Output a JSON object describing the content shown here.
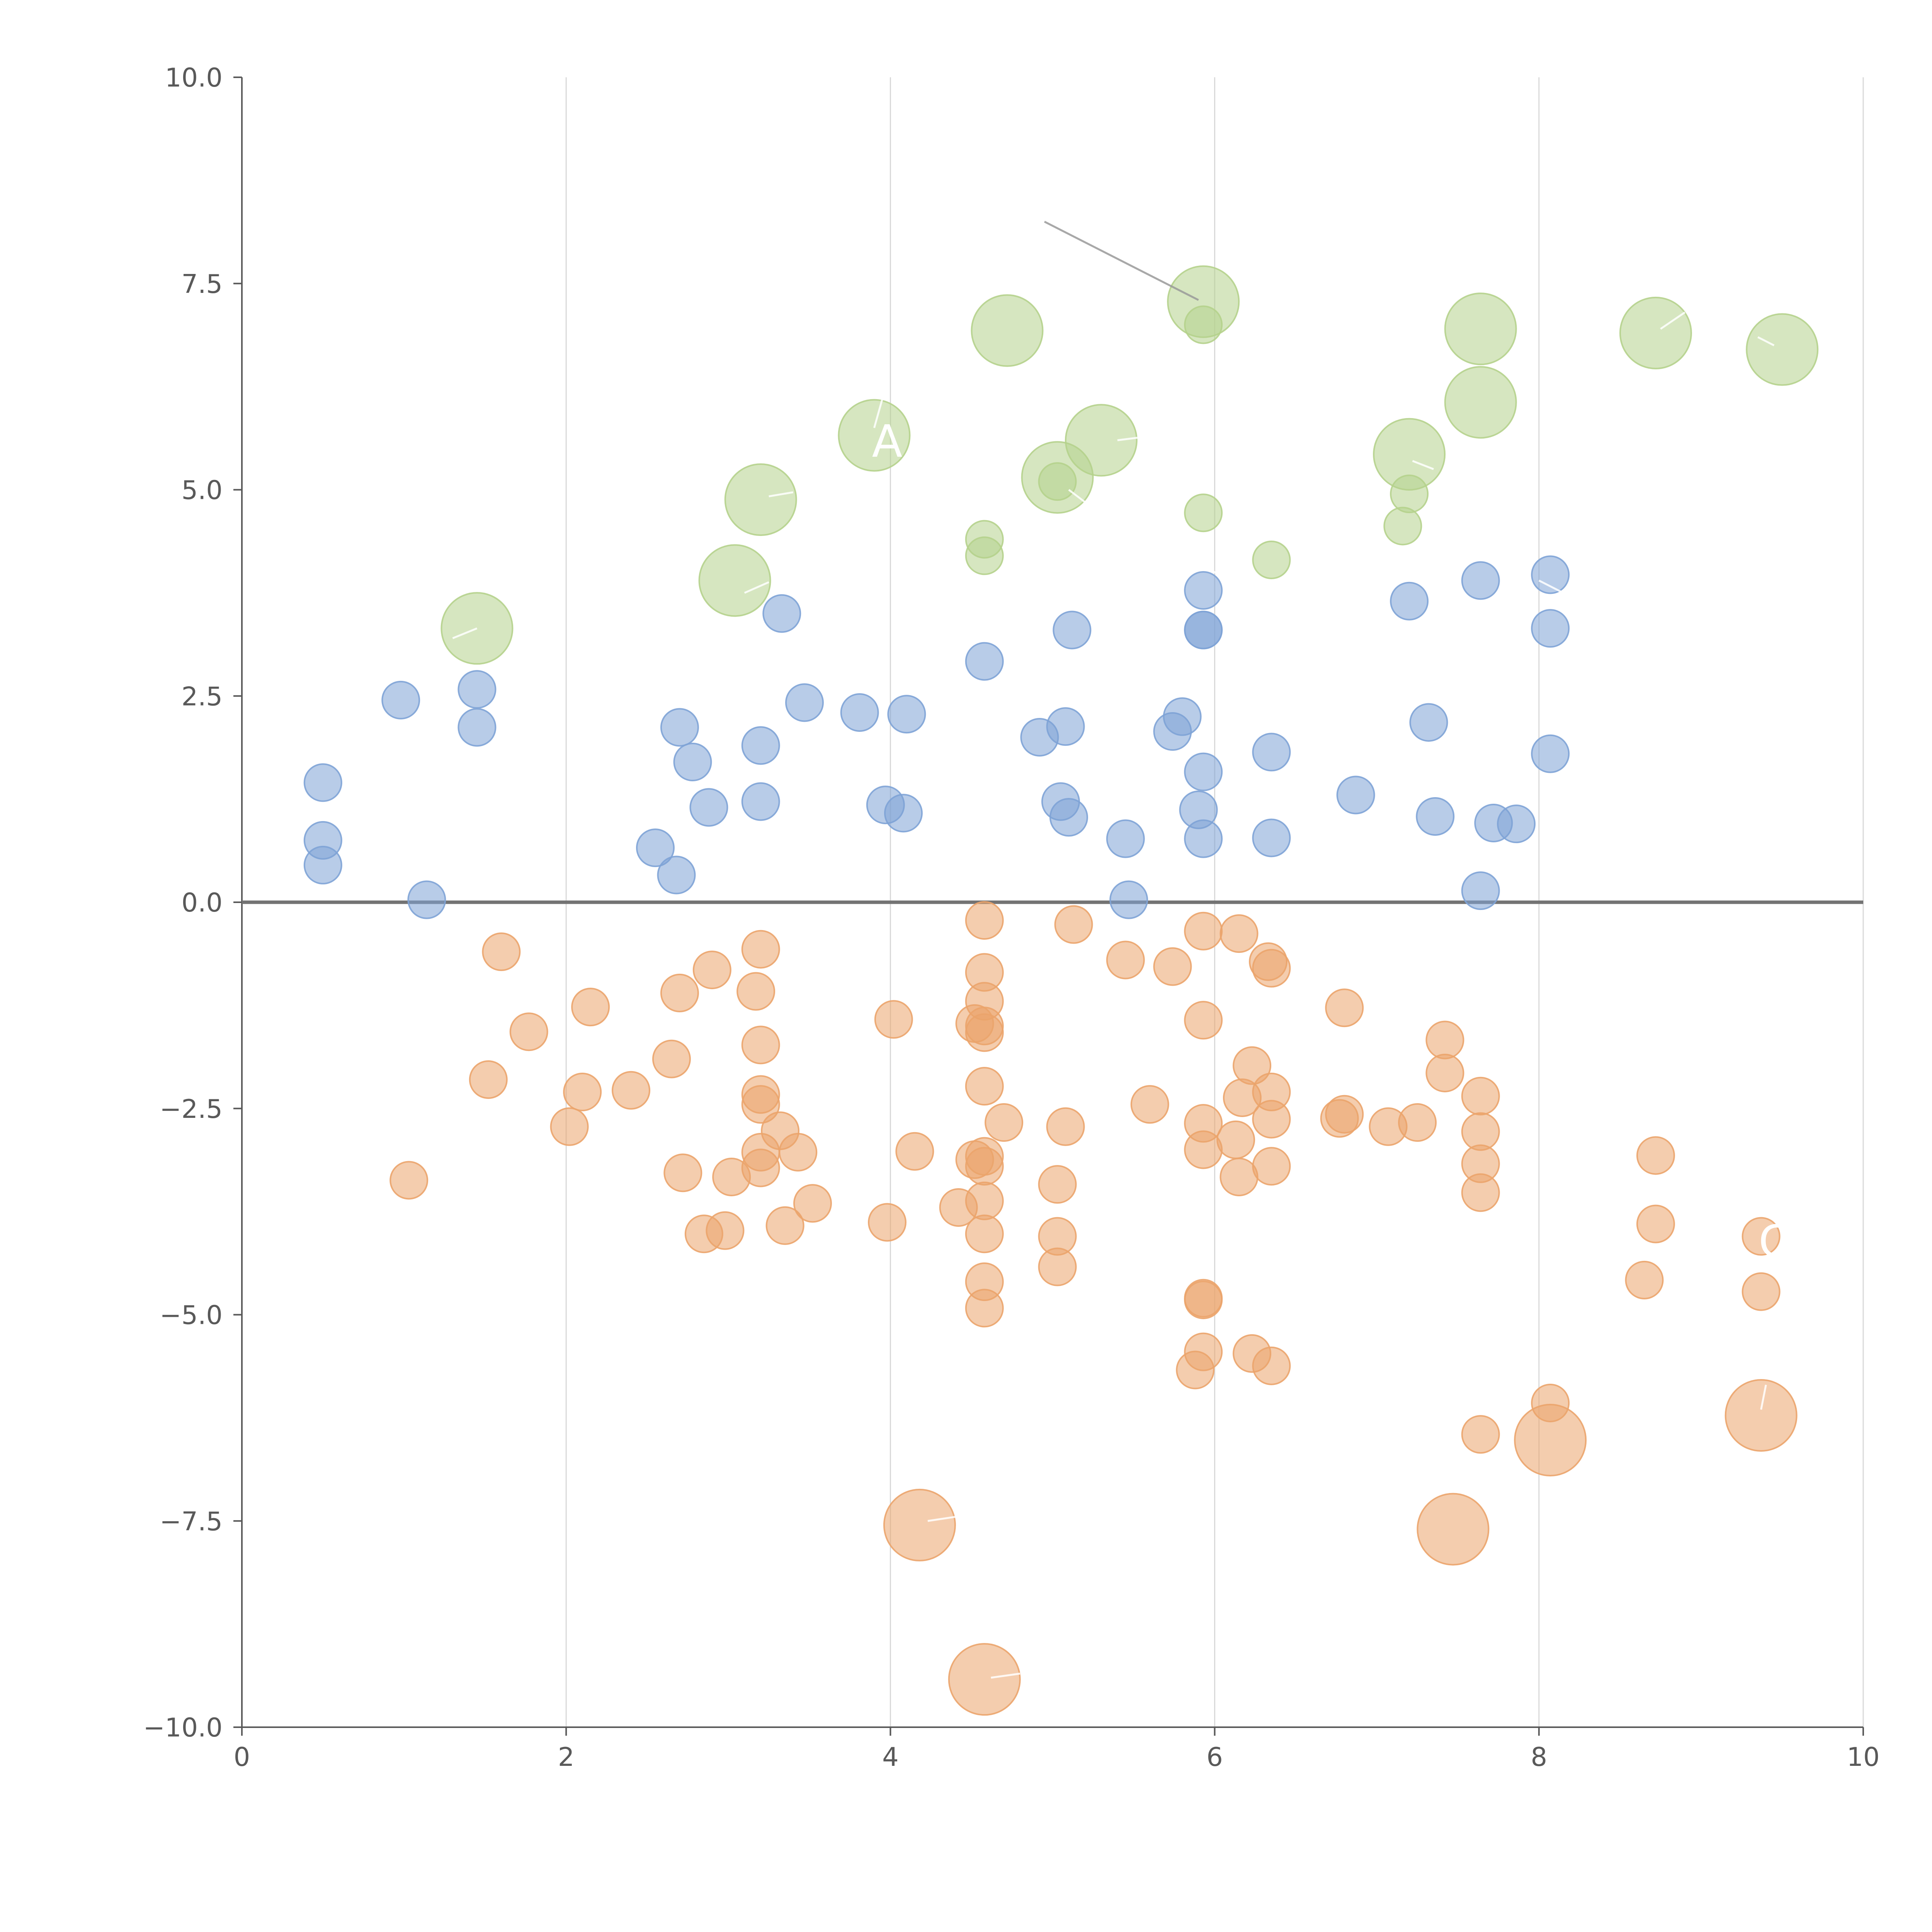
{
  "chart_data": {
    "type": "scatter",
    "xlim": [
      0,
      10
    ],
    "ylim": [
      -10,
      10
    ],
    "x_ticks": [
      "0",
      "2",
      "4",
      "6",
      "8",
      "10"
    ],
    "y_ticks": [
      "10.0",
      "7.5",
      "5.0",
      "2.5",
      "0.0",
      "−2.5",
      "−5.0",
      "−7.5",
      "−10.0"
    ],
    "x_tick_values": [
      0,
      2,
      4,
      6,
      8,
      10
    ],
    "y_tick_values": [
      10,
      7.5,
      5,
      2.5,
      0,
      -2.5,
      -5,
      -7.5,
      -10
    ],
    "grid": "vertical",
    "zero_line": 0,
    "colors": {
      "blue": "#7ea3d6",
      "orange": "#eba46b",
      "green": "#b5d18c",
      "grid": "#d9d9d9",
      "axis": "#595959"
    },
    "size_scale": {
      "small": 1,
      "large": 2
    },
    "series": [
      {
        "key": "blue",
        "points": [
          [
            0.5,
            1.45,
            1
          ],
          [
            0.5,
            0.75,
            1
          ],
          [
            0.5,
            0.45,
            1
          ],
          [
            0.98,
            2.45,
            1
          ],
          [
            1.14,
            0.03,
            1
          ],
          [
            1.45,
            2.58,
            1
          ],
          [
            1.45,
            2.12,
            1
          ],
          [
            2.55,
            0.66,
            1
          ],
          [
            2.68,
            0.33,
            1
          ],
          [
            2.7,
            2.12,
            1
          ],
          [
            2.78,
            1.7,
            1
          ],
          [
            2.88,
            1.15,
            1
          ],
          [
            3.2,
            1.9,
            1
          ],
          [
            3.2,
            1.22,
            1
          ],
          [
            3.33,
            3.5,
            1
          ],
          [
            3.47,
            2.42,
            1
          ],
          [
            3.81,
            2.3,
            1
          ],
          [
            3.97,
            1.18,
            1
          ],
          [
            4.08,
            1.08,
            1
          ],
          [
            4.1,
            2.28,
            1
          ],
          [
            4.58,
            2.92,
            1
          ],
          [
            4.92,
            2.0,
            1
          ],
          [
            5.05,
            1.22,
            1
          ],
          [
            5.08,
            2.13,
            1
          ],
          [
            5.1,
            1.03,
            1
          ],
          [
            5.12,
            3.3,
            1
          ],
          [
            5.45,
            0.77,
            1
          ],
          [
            5.47,
            0.03,
            1
          ],
          [
            5.74,
            2.07,
            1
          ],
          [
            5.8,
            2.25,
            1
          ],
          [
            5.9,
            1.12,
            1
          ],
          [
            5.93,
            0.77,
            1
          ],
          [
            5.93,
            1.58,
            1
          ],
          [
            5.93,
            3.3,
            1
          ],
          [
            5.93,
            3.3,
            1
          ],
          [
            5.93,
            3.78,
            1
          ],
          [
            6.35,
            1.82,
            1
          ],
          [
            6.35,
            0.78,
            1
          ],
          [
            6.87,
            1.3,
            1
          ],
          [
            7.2,
            3.65,
            1
          ],
          [
            7.32,
            2.18,
            1
          ],
          [
            7.36,
            1.04,
            1
          ],
          [
            7.64,
            3.9,
            1
          ],
          [
            7.64,
            0.14,
            1
          ],
          [
            7.72,
            0.96,
            1
          ],
          [
            7.86,
            0.95,
            1
          ],
          [
            8.07,
            3.97,
            1
          ],
          [
            8.07,
            3.32,
            1
          ],
          [
            8.07,
            1.8,
            1
          ]
        ]
      },
      {
        "key": "green",
        "points": [
          [
            1.45,
            3.32,
            2
          ],
          [
            3.04,
            3.9,
            2
          ],
          [
            3.2,
            4.88,
            2
          ],
          [
            3.9,
            5.66,
            2
          ],
          [
            4.72,
            6.93,
            2
          ],
          [
            5.03,
            5.15,
            2
          ],
          [
            5.3,
            5.6,
            2
          ],
          [
            5.93,
            7.28,
            2
          ],
          [
            7.2,
            5.43,
            2
          ],
          [
            7.64,
            6.95,
            2
          ],
          [
            7.64,
            6.06,
            2
          ],
          [
            8.72,
            6.9,
            2
          ],
          [
            9.5,
            6.7,
            2
          ],
          [
            4.58,
            4.4,
            1
          ],
          [
            4.58,
            4.2,
            1
          ],
          [
            5.03,
            5.1,
            1
          ],
          [
            5.93,
            7.0,
            1
          ],
          [
            5.93,
            4.72,
            1
          ],
          [
            6.35,
            4.15,
            1
          ],
          [
            7.2,
            4.95,
            1
          ],
          [
            7.16,
            4.56,
            1
          ]
        ]
      },
      {
        "key": "orange",
        "points": [
          [
            1.03,
            -3.37,
            1
          ],
          [
            1.52,
            -2.15,
            1
          ],
          [
            1.6,
            -0.6,
            1
          ],
          [
            1.77,
            -1.57,
            1
          ],
          [
            2.02,
            -2.72,
            1
          ],
          [
            2.1,
            -2.3,
            1
          ],
          [
            2.15,
            -1.27,
            1
          ],
          [
            2.4,
            -2.28,
            1
          ],
          [
            2.65,
            -1.9,
            1
          ],
          [
            2.7,
            -1.1,
            1
          ],
          [
            2.72,
            -3.28,
            1
          ],
          [
            2.85,
            -4.02,
            1
          ],
          [
            2.9,
            -0.82,
            1
          ],
          [
            2.98,
            -3.98,
            1
          ],
          [
            3.02,
            -3.33,
            1
          ],
          [
            3.17,
            -1.08,
            1
          ],
          [
            3.2,
            -0.57,
            1
          ],
          [
            3.2,
            -1.73,
            1
          ],
          [
            3.2,
            -2.33,
            1
          ],
          [
            3.2,
            -2.45,
            1
          ],
          [
            3.2,
            -3.03,
            1
          ],
          [
            3.2,
            -3.22,
            1
          ],
          [
            3.32,
            -2.77,
            1
          ],
          [
            3.35,
            -3.92,
            1
          ],
          [
            3.43,
            -3.03,
            1
          ],
          [
            3.52,
            -3.65,
            1
          ],
          [
            3.98,
            -3.88,
            1
          ],
          [
            4.02,
            -1.42,
            1
          ],
          [
            4.15,
            -3.02,
            1
          ],
          [
            4.42,
            -3.7,
            1
          ],
          [
            4.52,
            -3.12,
            1
          ],
          [
            4.52,
            -1.47,
            1
          ],
          [
            4.58,
            -0.22,
            1
          ],
          [
            4.58,
            -0.85,
            1
          ],
          [
            4.58,
            -1.2,
            1
          ],
          [
            4.58,
            -1.5,
            1
          ],
          [
            4.58,
            -1.58,
            1
          ],
          [
            4.58,
            -2.23,
            1
          ],
          [
            4.58,
            -3.08,
            1
          ],
          [
            4.58,
            -3.2,
            1
          ],
          [
            4.58,
            -3.62,
            1
          ],
          [
            4.58,
            -4.02,
            1
          ],
          [
            4.58,
            -4.6,
            1
          ],
          [
            4.58,
            -4.92,
            1
          ],
          [
            4.7,
            -2.67,
            1
          ],
          [
            5.03,
            -3.42,
            1
          ],
          [
            5.03,
            -4.05,
            1
          ],
          [
            5.03,
            -4.42,
            1
          ],
          [
            5.08,
            -2.72,
            1
          ],
          [
            5.13,
            -0.27,
            1
          ],
          [
            5.45,
            -0.7,
            1
          ],
          [
            5.6,
            -2.45,
            1
          ],
          [
            5.74,
            -0.78,
            1
          ],
          [
            5.88,
            -5.67,
            1
          ],
          [
            5.93,
            -0.35,
            1
          ],
          [
            5.93,
            -1.43,
            1
          ],
          [
            5.93,
            -2.68,
            1
          ],
          [
            5.93,
            -3.0,
            1
          ],
          [
            5.93,
            -4.82,
            1
          ],
          [
            5.93,
            -4.8,
            1
          ],
          [
            5.93,
            -5.45,
            1
          ],
          [
            6.15,
            -0.38,
            1
          ],
          [
            6.15,
            -3.33,
            1
          ],
          [
            6.13,
            -2.88,
            1
          ],
          [
            6.17,
            -2.37,
            1
          ],
          [
            6.23,
            -1.98,
            1
          ],
          [
            6.23,
            -5.47,
            1
          ],
          [
            6.33,
            -0.72,
            1
          ],
          [
            6.35,
            -0.8,
            1
          ],
          [
            6.35,
            -2.3,
            1
          ],
          [
            6.35,
            -2.63,
            1
          ],
          [
            6.35,
            -3.2,
            1
          ],
          [
            6.35,
            -5.62,
            1
          ],
          [
            6.77,
            -2.62,
            1
          ],
          [
            6.8,
            -2.57,
            1
          ],
          [
            6.8,
            -1.28,
            1
          ],
          [
            7.07,
            -2.72,
            1
          ],
          [
            7.25,
            -2.67,
            1
          ],
          [
            7.42,
            -1.67,
            1
          ],
          [
            7.42,
            -2.07,
            1
          ],
          [
            7.64,
            -2.35,
            1
          ],
          [
            7.64,
            -2.78,
            1
          ],
          [
            7.64,
            -3.17,
            1
          ],
          [
            7.64,
            -3.52,
            1
          ],
          [
            7.64,
            -6.45,
            1
          ],
          [
            8.07,
            -6.07,
            1
          ],
          [
            8.65,
            -4.58,
            1
          ],
          [
            8.72,
            -3.07,
            1
          ],
          [
            8.72,
            -3.9,
            1
          ],
          [
            9.37,
            -4.05,
            1
          ],
          [
            9.37,
            -4.72,
            1
          ],
          [
            4.18,
            -7.55,
            2
          ],
          [
            4.58,
            -9.42,
            2
          ],
          [
            7.47,
            -7.6,
            2
          ],
          [
            8.07,
            -6.52,
            2
          ],
          [
            9.37,
            -6.22,
            2
          ]
        ]
      }
    ],
    "annotation_lines": [
      {
        "from": [
          4.95,
          8.25
        ],
        "to": [
          5.9,
          7.3
        ],
        "color": "#999999"
      },
      {
        "from": [
          1.3,
          3.2
        ],
        "to": [
          1.45,
          3.32
        ],
        "color": "#ffffff"
      },
      {
        "from": [
          3.1,
          3.75
        ],
        "to": [
          3.25,
          3.88
        ],
        "color": "#ffffff"
      },
      {
        "from": [
          3.25,
          4.92
        ],
        "to": [
          3.4,
          4.97
        ],
        "color": "#ffffff"
      },
      {
        "from": [
          3.9,
          5.75
        ],
        "to": [
          3.95,
          6.1
        ],
        "color": "#ffffff"
      },
      {
        "from": [
          5.1,
          5.0
        ],
        "to": [
          5.2,
          4.85
        ],
        "color": "#ffffff"
      },
      {
        "from": [
          5.4,
          5.6
        ],
        "to": [
          5.6,
          5.65
        ],
        "color": "#ffffff"
      },
      {
        "from": [
          7.22,
          5.35
        ],
        "to": [
          7.35,
          5.25
        ],
        "color": "#ffffff"
      },
      {
        "from": [
          8.75,
          6.95
        ],
        "to": [
          8.9,
          7.15
        ],
        "color": "#ffffff"
      },
      {
        "from": [
          9.35,
          6.85
        ],
        "to": [
          9.45,
          6.75
        ],
        "color": "#ffffff"
      },
      {
        "from": [
          4.23,
          -7.5
        ],
        "to": [
          4.4,
          -7.45
        ],
        "color": "#ffffff"
      },
      {
        "from": [
          4.62,
          -9.4
        ],
        "to": [
          4.8,
          -9.35
        ],
        "color": "#ffffff"
      },
      {
        "from": [
          9.4,
          -5.85
        ],
        "to": [
          9.37,
          -6.15
        ],
        "color": "#ffffff"
      },
      {
        "from": [
          6.1,
          3.9
        ],
        "to": [
          5.95,
          4.05
        ],
        "color": "#ffffff"
      },
      {
        "from": [
          8.0,
          3.9
        ],
        "to": [
          8.15,
          3.75
        ],
        "color": "#ffffff"
      }
    ],
    "annotations": [
      {
        "text": "A",
        "x": 3.98,
        "y": 5.4
      },
      {
        "text": "C",
        "x": 9.45,
        "y": -4.3
      }
    ]
  }
}
